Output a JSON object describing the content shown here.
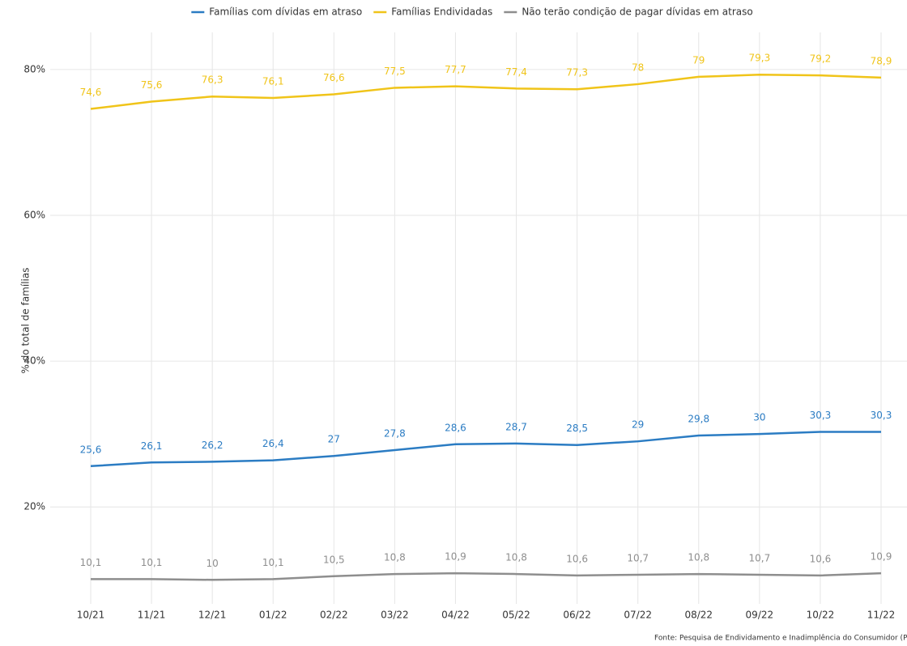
{
  "chart_data": {
    "type": "line",
    "categories": [
      "10/21",
      "11/21",
      "12/21",
      "01/22",
      "02/22",
      "03/22",
      "04/22",
      "05/22",
      "06/22",
      "07/22",
      "08/22",
      "09/22",
      "10/22",
      "11/22"
    ],
    "y_label": "% do total de famílias",
    "source": "Fonte: Pesquisa de Endividamento e Inadimplência do Consumidor (P",
    "ylim": [
      6.7,
      85.1
    ],
    "yticks": [
      {
        "value": 20,
        "label": "20%"
      },
      {
        "value": 40,
        "label": "40%"
      },
      {
        "value": 60,
        "label": "60%"
      },
      {
        "value": 80,
        "label": "80%"
      }
    ],
    "grid": true,
    "legend": "top",
    "series": [
      {
        "name": "Famílias com dívidas em atraso",
        "color": "#2b7cc3",
        "values": [
          25.6,
          26.1,
          26.2,
          26.4,
          27,
          27.8,
          28.6,
          28.7,
          28.5,
          29,
          29.8,
          30,
          30.3,
          30.3
        ],
        "value_labels": [
          "25,6",
          "26,1",
          "26,2",
          "26,4",
          "27",
          "27,8",
          "28,6",
          "28,7",
          "28,5",
          "29",
          "29,8",
          "30",
          "30,3",
          "30,3"
        ]
      },
      {
        "name": "Famílias Endividadas",
        "color": "#f0c419",
        "values": [
          74.6,
          75.6,
          76.3,
          76.1,
          76.6,
          77.5,
          77.7,
          77.4,
          77.3,
          78,
          79,
          79.3,
          79.2,
          78.9
        ],
        "value_labels": [
          "74,6",
          "75,6",
          "76,3",
          "76,1",
          "76,6",
          "77,5",
          "77,7",
          "77,4",
          "77,3",
          "78",
          "79",
          "79,3",
          "79,2",
          "78,9"
        ]
      },
      {
        "name": "Não terão condição de pagar dívidas em atraso",
        "color": "#8e8e8e",
        "values": [
          10.1,
          10.1,
          10,
          10.1,
          10.5,
          10.8,
          10.9,
          10.8,
          10.6,
          10.7,
          10.8,
          10.7,
          10.6,
          10.9
        ],
        "value_labels": [
          "10,1",
          "10,1",
          "10",
          "10,1",
          "10,5",
          "10,8",
          "10,9",
          "10,8",
          "10,6",
          "10,7",
          "10,8",
          "10,7",
          "10,6",
          "10,9"
        ]
      }
    ]
  }
}
